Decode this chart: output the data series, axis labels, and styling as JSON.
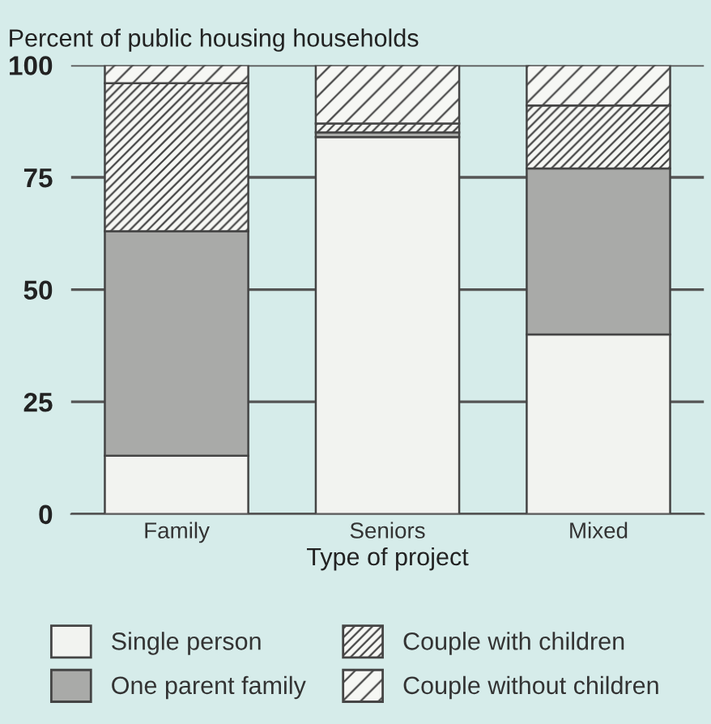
{
  "chart_data": {
    "type": "bar",
    "stacked": true,
    "ylabel": "Percent of public housing households",
    "xlabel": "Type of project",
    "categories": [
      "Family",
      "Seniors",
      "Mixed"
    ],
    "series": [
      {
        "name": "Single person",
        "color": "#f2f3f0",
        "values": [
          13,
          84,
          40
        ]
      },
      {
        "name": "One parent family",
        "color": "#a9aaa8",
        "values": [
          50,
          1,
          37
        ]
      },
      {
        "name": "Couple with children",
        "color": "#444444",
        "values": [
          33,
          2,
          14
        ]
      },
      {
        "name": "Couple without children",
        "color": "#454545",
        "values": [
          4,
          13,
          9
        ]
      }
    ],
    "ylim": [
      0,
      100
    ],
    "yticks": [
      0,
      25,
      50,
      75,
      100
    ],
    "grid": "y",
    "legend": "bottom"
  }
}
